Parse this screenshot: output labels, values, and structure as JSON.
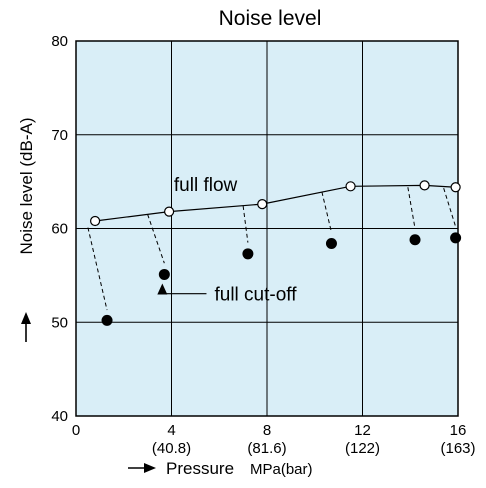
{
  "chart_data": {
    "type": "line",
    "title": "Noise level",
    "xlabel": "Pressure",
    "xlabel_unit": "MPa(bar)",
    "ylabel": "Noise level (dB-A)",
    "xlim": [
      0,
      16
    ],
    "ylim": [
      40,
      80
    ],
    "grid": true,
    "plot_background": "#d9eef7",
    "x_ticks": [
      {
        "value": 0,
        "label": "0",
        "sub": ""
      },
      {
        "value": 4,
        "label": "4",
        "sub": "(40.8)"
      },
      {
        "value": 8,
        "label": "8",
        "sub": "(81.6)"
      },
      {
        "value": 12,
        "label": "12",
        "sub": "(122)"
      },
      {
        "value": 16,
        "label": "16",
        "sub": "(163)"
      }
    ],
    "y_ticks": [
      {
        "value": 40,
        "label": "40"
      },
      {
        "value": 50,
        "label": "50"
      },
      {
        "value": 60,
        "label": "60"
      },
      {
        "value": 70,
        "label": "70"
      },
      {
        "value": 80,
        "label": "80"
      }
    ],
    "series": [
      {
        "name": "full flow",
        "marker": "open-circle",
        "line": "solid",
        "points": [
          {
            "x": 0.8,
            "y": 60.8
          },
          {
            "x": 3.9,
            "y": 61.8
          },
          {
            "x": 7.8,
            "y": 62.6
          },
          {
            "x": 11.5,
            "y": 64.5
          },
          {
            "x": 14.6,
            "y": 64.6
          },
          {
            "x": 15.9,
            "y": 64.4
          }
        ]
      },
      {
        "name": "full cut-off",
        "marker": "filled-circle",
        "line": "none",
        "points": [
          {
            "x": 1.3,
            "y": 50.2
          },
          {
            "x": 3.7,
            "y": 55.1
          },
          {
            "x": 7.2,
            "y": 57.3
          },
          {
            "x": 10.7,
            "y": 58.4
          },
          {
            "x": 14.2,
            "y": 58.8
          },
          {
            "x": 15.9,
            "y": 59.0
          }
        ]
      }
    ],
    "connectors": [
      {
        "from": {
          "x": 0.5,
          "y": 60.1
        },
        "to": {
          "x": 1.3,
          "y": 51.3
        }
      },
      {
        "from": {
          "x": 3.0,
          "y": 61.5
        },
        "to": {
          "x": 3.7,
          "y": 56.3
        }
      },
      {
        "from": {
          "x": 7.0,
          "y": 62.4
        },
        "to": {
          "x": 7.2,
          "y": 58.5
        }
      },
      {
        "from": {
          "x": 10.3,
          "y": 63.9
        },
        "to": {
          "x": 10.7,
          "y": 59.6
        }
      },
      {
        "from": {
          "x": 13.9,
          "y": 64.4
        },
        "to": {
          "x": 14.2,
          "y": 60.0
        }
      },
      {
        "from": {
          "x": 15.4,
          "y": 64.3
        },
        "to": {
          "x": 15.9,
          "y": 60.2
        }
      }
    ],
    "annotations": [
      {
        "text": "full flow",
        "x": 4.1,
        "y": 64.0
      },
      {
        "text": "full cut-off",
        "x": 5.8,
        "y": 52.3
      }
    ]
  }
}
